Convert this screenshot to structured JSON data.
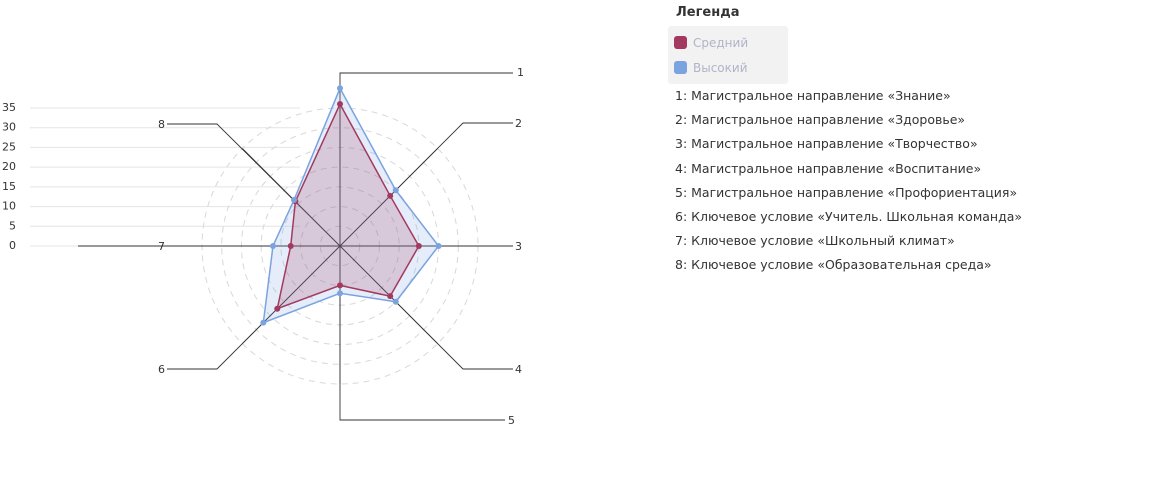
{
  "chart_data": {
    "type": "radar",
    "categories": [
      "1",
      "2",
      "3",
      "4",
      "5",
      "6",
      "7",
      "8"
    ],
    "series": [
      {
        "name": "Средний",
        "color": "#a3395e",
        "values": [
          36,
          18,
          20,
          18,
          10,
          22.5,
          12.5,
          16
        ]
      },
      {
        "name": "Высокий",
        "color": "#7aa3e0",
        "values": [
          40,
          20,
          25,
          20,
          12,
          27.5,
          17,
          16.5
        ]
      }
    ],
    "ylim": [
      0,
      35
    ],
    "yticks": [
      0,
      5,
      10,
      15,
      20,
      25,
      30,
      35
    ],
    "legend_title": "Легенда",
    "descriptions": [
      "1: Магистральное направление «Знание»",
      "2: Магистральное направление «Здоровье»",
      "3: Магистральное направление «Творчество»",
      "4: Магистральное направление «Воспитание»",
      "5: Магистральное направление «Профориентация»",
      "6: Ключевое условие «Учитель. Школьная команда»",
      "7: Ключевое условие «Школьный климат»",
      "8: Ключевое условие «Образовательная среда»"
    ]
  }
}
